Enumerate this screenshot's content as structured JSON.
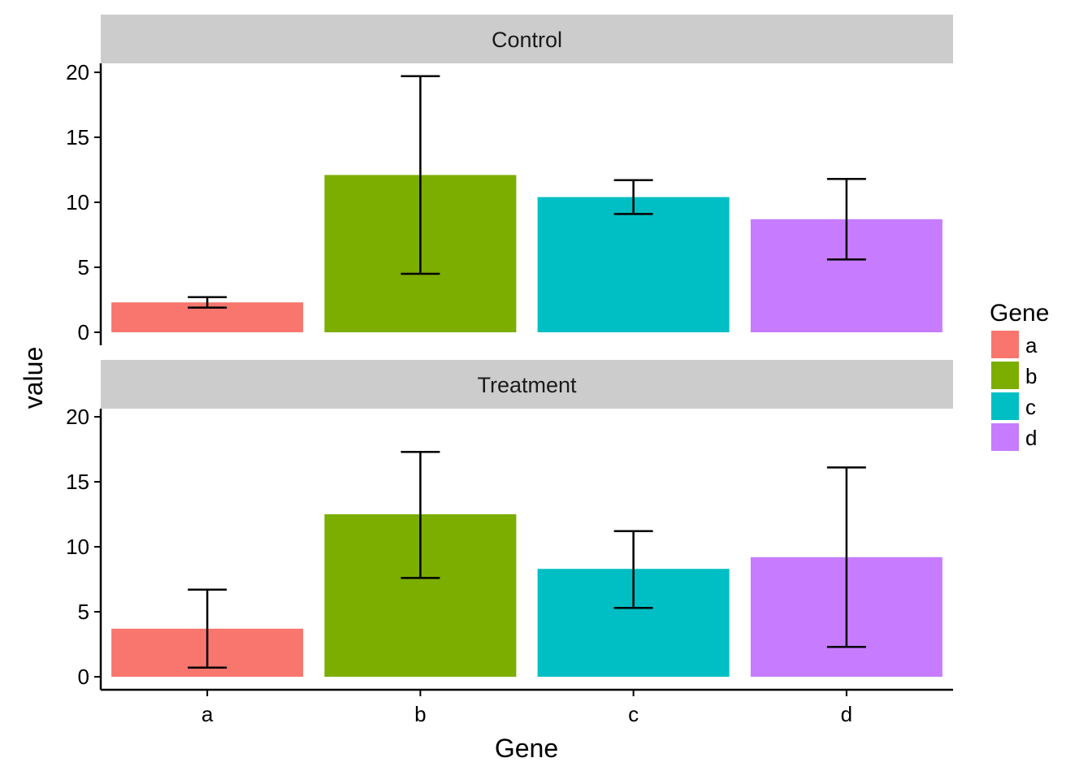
{
  "chart_data": {
    "type": "bar",
    "facets": [
      "Control",
      "Treatment"
    ],
    "categories": [
      "a",
      "b",
      "c",
      "d"
    ],
    "panels": [
      {
        "strip": "Control",
        "values": [
          2.3,
          12.1,
          10.4,
          8.7
        ],
        "error_low": [
          1.9,
          4.5,
          9.1,
          5.6
        ],
        "error_high": [
          2.7,
          19.7,
          11.7,
          11.8
        ]
      },
      {
        "strip": "Treatment",
        "values": [
          3.7,
          12.5,
          8.3,
          9.2
        ],
        "error_low": [
          0.7,
          7.6,
          5.3,
          2.3
        ],
        "error_high": [
          6.7,
          17.3,
          11.2,
          16.1
        ]
      }
    ],
    "xlabel": "Gene",
    "ylabel": "value",
    "ylim": [
      0,
      20
    ],
    "yticks": [
      0,
      5,
      10,
      15,
      20
    ],
    "grid": false,
    "legend": {
      "title": "Gene",
      "position": "right",
      "entries": [
        "a",
        "b",
        "c",
        "d"
      ]
    },
    "colors": {
      "a": "#F8766D",
      "b": "#7CAE00",
      "c": "#00BFC4",
      "d": "#C77CFF",
      "strip_background": "#CCCCCC"
    }
  }
}
